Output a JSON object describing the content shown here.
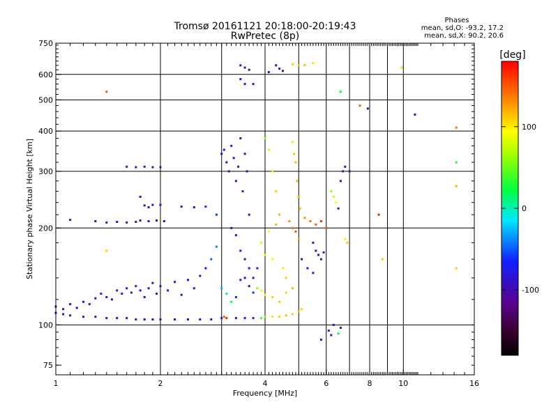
{
  "chart_data": {
    "type": "scatter",
    "title": "Tromsø 20161121 20:18:00-20:19:43",
    "subtitle": "RwPretec (8p)",
    "xlabel": "Frequency [MHz]",
    "ylabel": "Stationary phase Virtual Height [km]",
    "xscale": "log",
    "yscale": "log",
    "xlim": [
      1,
      16
    ],
    "ylim": [
      70,
      750
    ],
    "x_ticks": [
      1,
      2,
      4,
      6,
      8,
      10,
      16
    ],
    "x_tick_labels": [
      "1",
      "2",
      "4",
      "6",
      "8",
      "10",
      "16"
    ],
    "x_grid": [
      2,
      3,
      4,
      5,
      6,
      7,
      8,
      9,
      10
    ],
    "y_ticks": [
      75,
      100,
      200,
      300,
      400,
      500,
      600,
      750
    ],
    "y_tick_labels": [
      "75",
      "100",
      "200",
      "300",
      "400",
      "500",
      "600",
      "750"
    ],
    "y_grid": [
      100,
      200,
      300,
      400,
      500,
      600
    ],
    "grid": true,
    "legend": {
      "title": "Phases",
      "lines": [
        "mean, sd,O: -93.2, 17.2",
        "mean, sd,X:  90.2, 20.6"
      ],
      "placement": "top-right"
    },
    "colorbar": {
      "label": "[deg]",
      "range": [
        -180,
        180
      ],
      "tick_values": [
        100,
        0,
        -100
      ],
      "tick_labels": [
        "100",
        "0",
        "-100"
      ],
      "colormap": "rainbow (black → purple → blue → cyan → green → yellow → red)"
    },
    "series": [
      {
        "points": [
          [
            1.0,
            109,
            -95
          ],
          [
            1.05,
            108,
            -97
          ],
          [
            1.1,
            107,
            -98
          ],
          [
            1.2,
            106,
            -95
          ],
          [
            1.3,
            106,
            -96
          ],
          [
            1.4,
            105,
            -95
          ],
          [
            1.5,
            105,
            -94
          ],
          [
            1.6,
            105,
            -95
          ],
          [
            1.7,
            104,
            -96
          ],
          [
            1.8,
            104,
            -96
          ],
          [
            1.9,
            104,
            -95
          ],
          [
            2.0,
            104,
            -94
          ],
          [
            2.2,
            104,
            -95
          ],
          [
            2.4,
            104,
            -95
          ],
          [
            2.6,
            104,
            -94
          ],
          [
            2.8,
            104,
            -92
          ],
          [
            3.0,
            105,
            -90
          ],
          [
            3.05,
            106,
            150
          ],
          [
            3.1,
            105,
            170
          ],
          [
            3.3,
            105,
            -85
          ],
          [
            3.5,
            105,
            -80
          ],
          [
            3.7,
            105,
            -70
          ],
          [
            3.9,
            105,
            40
          ],
          [
            4.0,
            106,
            60
          ],
          [
            4.2,
            106,
            100
          ],
          [
            4.4,
            106,
            110
          ],
          [
            4.6,
            107,
            115
          ],
          [
            4.8,
            108,
            110
          ],
          [
            5.0,
            110,
            112
          ],
          [
            5.1,
            112,
            105
          ],
          [
            1.0,
            114,
            -100
          ],
          [
            1.05,
            112,
            -92
          ],
          [
            1.1,
            116,
            -90
          ],
          [
            1.15,
            113,
            -95
          ],
          [
            1.2,
            118,
            -98
          ],
          [
            1.25,
            116,
            -90
          ],
          [
            1.3,
            121,
            -94
          ],
          [
            1.35,
            125,
            -96
          ],
          [
            1.4,
            122,
            -92
          ],
          [
            1.45,
            120,
            -95
          ],
          [
            1.5,
            128,
            -97
          ],
          [
            1.55,
            125,
            -95
          ],
          [
            1.6,
            130,
            -93
          ],
          [
            1.65,
            126,
            -96
          ],
          [
            1.7,
            132,
            -92
          ],
          [
            1.75,
            128,
            -94
          ],
          [
            1.8,
            122,
            -95
          ],
          [
            1.85,
            130,
            -97
          ],
          [
            1.9,
            135,
            -92
          ],
          [
            1.95,
            125,
            -91
          ],
          [
            2.0,
            132,
            -94
          ],
          [
            2.1,
            128,
            -90
          ],
          [
            2.2,
            136,
            -92
          ],
          [
            2.3,
            124,
            -96
          ],
          [
            2.4,
            138,
            -88
          ],
          [
            2.5,
            130,
            -85
          ],
          [
            2.6,
            142,
            -80
          ],
          [
            2.7,
            150,
            -70
          ],
          [
            2.8,
            160,
            -50
          ],
          [
            2.9,
            175,
            -40
          ],
          [
            3.0,
            130,
            -30
          ],
          [
            3.1,
            125,
            10
          ],
          [
            3.2,
            118,
            20
          ],
          [
            3.3,
            122,
            -60
          ],
          [
            3.4,
            138,
            -85
          ],
          [
            3.5,
            140,
            -88
          ],
          [
            3.6,
            132,
            -90
          ],
          [
            3.7,
            126,
            -60
          ],
          [
            3.8,
            130,
            60
          ],
          [
            3.9,
            128,
            90
          ],
          [
            4.0,
            124,
            100
          ],
          [
            4.2,
            122,
            110
          ],
          [
            4.4,
            118,
            112
          ],
          [
            4.6,
            126,
            108
          ],
          [
            4.8,
            130,
            115
          ],
          [
            1.1,
            212,
            -95
          ],
          [
            1.3,
            210,
            -96
          ],
          [
            1.4,
            208,
            -95
          ],
          [
            1.5,
            209,
            -94
          ],
          [
            1.6,
            208,
            -96
          ],
          [
            1.7,
            209,
            -95
          ],
          [
            1.75,
            211,
            -94
          ],
          [
            1.85,
            210,
            -95
          ],
          [
            1.95,
            211,
            -93
          ],
          [
            2.05,
            210,
            -92
          ],
          [
            1.6,
            310,
            -95
          ],
          [
            1.7,
            309,
            -96
          ],
          [
            1.8,
            310,
            -95
          ],
          [
            1.9,
            309,
            -94
          ],
          [
            2.0,
            309,
            -95
          ],
          [
            1.75,
            250,
            -96
          ],
          [
            1.8,
            235,
            -95
          ],
          [
            1.85,
            232,
            -94
          ],
          [
            1.9,
            236,
            -95
          ],
          [
            2.0,
            236,
            -90
          ],
          [
            2.3,
            233,
            -85
          ],
          [
            2.5,
            232,
            -80
          ],
          [
            2.7,
            233,
            -70
          ],
          [
            2.9,
            220,
            -60
          ],
          [
            3.0,
            340,
            -90
          ],
          [
            3.05,
            350,
            -92
          ],
          [
            3.1,
            320,
            -94
          ],
          [
            3.15,
            300,
            -95
          ],
          [
            3.2,
            360,
            -93
          ],
          [
            3.25,
            330,
            -96
          ],
          [
            3.3,
            280,
            -92
          ],
          [
            3.35,
            310,
            -94
          ],
          [
            3.4,
            380,
            -90
          ],
          [
            3.45,
            260,
            -88
          ],
          [
            3.5,
            340,
            -92
          ],
          [
            3.55,
            300,
            -95
          ],
          [
            3.6,
            220,
            -90
          ],
          [
            3.2,
            200,
            -92
          ],
          [
            3.3,
            190,
            -94
          ],
          [
            3.4,
            170,
            -90
          ],
          [
            3.5,
            160,
            -92
          ],
          [
            3.6,
            150,
            -88
          ],
          [
            3.7,
            140,
            -86
          ],
          [
            3.8,
            150,
            -80
          ],
          [
            3.4,
            640,
            -90
          ],
          [
            3.5,
            630,
            -92
          ],
          [
            3.6,
            620,
            -95
          ],
          [
            3.4,
            580,
            -88
          ],
          [
            3.5,
            560,
            -90
          ],
          [
            4.3,
            640,
            -100
          ],
          [
            4.4,
            625,
            -98
          ],
          [
            4.5,
            615,
            -96
          ],
          [
            4.1,
            610,
            -95
          ],
          [
            3.7,
            560,
            -90
          ],
          [
            4.8,
            645,
            110
          ],
          [
            5.0,
            640,
            112
          ],
          [
            5.2,
            642,
            115
          ],
          [
            5.5,
            650,
            108
          ],
          [
            4.0,
            380,
            60
          ],
          [
            4.1,
            350,
            80
          ],
          [
            4.2,
            300,
            100
          ],
          [
            4.3,
            260,
            110
          ],
          [
            4.4,
            220,
            120
          ],
          [
            4.8,
            370,
            100
          ],
          [
            4.85,
            340,
            110
          ],
          [
            4.9,
            320,
            115
          ],
          [
            4.95,
            280,
            120
          ],
          [
            5.0,
            250,
            118
          ],
          [
            5.05,
            230,
            112
          ],
          [
            4.7,
            210,
            130
          ],
          [
            4.8,
            200,
            140
          ],
          [
            4.9,
            195,
            150
          ],
          [
            5.0,
            185,
            120
          ],
          [
            5.2,
            215,
            130
          ],
          [
            5.4,
            210,
            140
          ],
          [
            5.6,
            205,
            150
          ],
          [
            5.8,
            210,
            160
          ],
          [
            6.0,
            200,
            150
          ],
          [
            5.5,
            180,
            -100
          ],
          [
            5.6,
            170,
            -95
          ],
          [
            5.7,
            165,
            -92
          ],
          [
            5.8,
            160,
            -96
          ],
          [
            5.9,
            168,
            -90
          ],
          [
            6.2,
            260,
            60
          ],
          [
            6.3,
            250,
            80
          ],
          [
            6.4,
            240,
            90
          ],
          [
            6.5,
            230,
            -100
          ],
          [
            6.6,
            280,
            -95
          ],
          [
            6.7,
            300,
            -90
          ],
          [
            6.8,
            310,
            -92
          ],
          [
            7.0,
            300,
            -95
          ],
          [
            6.8,
            185,
            100
          ],
          [
            6.9,
            180,
            110
          ],
          [
            5.1,
            160,
            -100
          ],
          [
            5.3,
            150,
            -95
          ],
          [
            5.5,
            145,
            -90
          ],
          [
            4.6,
            140,
            110
          ],
          [
            4.5,
            150,
            100
          ],
          [
            4.2,
            160,
            90
          ],
          [
            4.0,
            165,
            80
          ],
          [
            3.9,
            180,
            85
          ],
          [
            4.1,
            195,
            95
          ],
          [
            4.3,
            205,
            120
          ],
          [
            6.3,
            100,
            -80
          ],
          [
            6.6,
            98,
            -90
          ],
          [
            6.5,
            94,
            20
          ],
          [
            6.1,
            96,
            -85
          ],
          [
            1.4,
            530,
            150
          ],
          [
            1.4,
            170,
            110
          ],
          [
            6.6,
            530,
            20
          ],
          [
            7.5,
            480,
            150
          ],
          [
            7.9,
            470,
            -90
          ],
          [
            8.5,
            220,
            170
          ],
          [
            8.7,
            160,
            110
          ],
          [
            9.9,
            630,
            110
          ],
          [
            10.8,
            450,
            -80
          ],
          [
            14.2,
            410,
            140
          ],
          [
            14.2,
            320,
            30
          ],
          [
            14.2,
            270,
            120
          ],
          [
            14.2,
            150,
            110
          ],
          [
            5.8,
            90,
            -100
          ],
          [
            6.2,
            93,
            -90
          ]
        ]
      }
    ]
  }
}
